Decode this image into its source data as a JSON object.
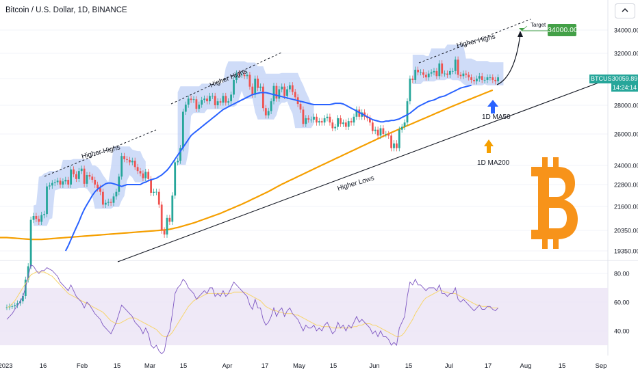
{
  "header": {
    "title": "Bitcoin / U.S. Dollar, 1D, BINANCE"
  },
  "colors": {
    "up": "#26a69a",
    "down": "#ef5350",
    "ma50": "#2962ff",
    "ma200": "#f59f00",
    "hull": "#bfd0f5",
    "rsi": "#7e57c2",
    "rsi_ma": "#f7d56e",
    "rsi_band": "#ede7f6",
    "btc_logo": "#f7931a",
    "target": "#43a047",
    "trendline": "#131722"
  },
  "price_tag": {
    "symbol": "BTCUSD",
    "value": "30059.89",
    "countdown": "14:24:14"
  },
  "target": {
    "label": "Target",
    "value": "34000.00"
  },
  "annotations": {
    "higher_highs_1": "Higher Highs",
    "higher_highs_2": "Higher Highs",
    "higher_highs_3": "Higher Highs",
    "higher_lows": "Higher Lows",
    "ma50_label": "1D MA50",
    "ma200_label": "1D MA200"
  },
  "icons": {
    "logo": "bitcoin-logo-icon",
    "ma50_arrow": "arrow-up-icon",
    "ma200_arrow": "arrow-up-icon",
    "target_arrow": "curved-arrow-icon",
    "header_icon": "chart-toggle-icon"
  },
  "chart_data": {
    "type": "candlestick",
    "price_axis": {
      "ticks": [
        34000,
        32000,
        30000,
        28000,
        26000,
        24000,
        22800,
        21600,
        20350,
        19350
      ],
      "labels": [
        "34000.00",
        "32000.00",
        "30000.00",
        "28000.00",
        "26000.00",
        "24000.00",
        "22800.00",
        "21600.00",
        "20350.00",
        "19350.00"
      ]
    },
    "rsi_axis": {
      "ticks": [
        80,
        60,
        40
      ],
      "labels": [
        "80.00",
        "60.00",
        "40.00"
      ],
      "band": [
        30,
        70
      ]
    },
    "time_axis": {
      "labels": [
        "2023",
        "16",
        "Feb",
        "15",
        "Mar",
        "15",
        "Apr",
        "17",
        "May",
        "15",
        "Jun",
        "15",
        "Jul",
        "17",
        "Aug",
        "15",
        "Sep"
      ]
    },
    "close": [
      16600,
      16650,
      16650,
      16700,
      16800,
      16900,
      17150,
      17950,
      18600,
      20900,
      21100,
      20950,
      20800,
      21150,
      21200,
      22700,
      22750,
      22900,
      22950,
      23050,
      22800,
      23000,
      23100,
      22800,
      23750,
      23450,
      23150,
      23650,
      23800,
      22850,
      23400,
      23300,
      23100,
      22800,
      22600,
      22400,
      21700,
      21800,
      21850,
      21800,
      22150,
      22400,
      23300,
      24600,
      24400,
      24350,
      24200,
      24300,
      23900,
      23650,
      23500,
      23200,
      23600,
      23150,
      22350,
      22400,
      22400,
      21700,
      20350,
      20150,
      21000,
      20800,
      22200,
      24200,
      24300,
      25100,
      27550,
      28050,
      28500,
      28400,
      28450,
      27750,
      28050,
      28400,
      28500,
      28300,
      28700,
      28700,
      28000,
      28300,
      28200,
      28700,
      28200,
      28300,
      28800,
      29900,
      30400,
      30300,
      30300,
      30200,
      30300,
      29400,
      28800,
      30000,
      29300,
      29400,
      27800,
      27300,
      27600,
      28300,
      29450,
      28500,
      29200,
      29400,
      28700,
      29200,
      29500,
      29000,
      28600,
      28100,
      27700,
      26700,
      27100,
      27000,
      27000,
      27200,
      26800,
      26900,
      26800,
      27100,
      27200,
      26800,
      26400,
      26500,
      27100,
      26700,
      26800,
      26500,
      26900,
      26800,
      27200,
      27700,
      27200,
      27500,
      27200,
      27100,
      26800,
      26200,
      26300,
      25900,
      26400,
      26000,
      26000,
      25900,
      25100,
      25400,
      25100,
      26300,
      26500,
      26800,
      28300,
      30000,
      29900,
      30700,
      30500,
      30500,
      30300,
      30100,
      30400,
      30500,
      30600,
      30200,
      31200,
      30400,
      30400,
      30300,
      30600,
      30600,
      31500,
      30300,
      30200,
      30400,
      30300,
      30100,
      29900,
      29800,
      30000,
      30200,
      29900,
      29900,
      30100,
      30100,
      29900,
      29800,
      30100
    ],
    "ma50": [
      null,
      null,
      null,
      null,
      null,
      null,
      null,
      null,
      null,
      null,
      null,
      null,
      null,
      null,
      null,
      null,
      null,
      null,
      null,
      null,
      null,
      null,
      19350,
      19600,
      19900,
      20200,
      20500,
      20800,
      21150,
      21450,
      21700,
      21950,
      22200,
      22400,
      22550,
      22650,
      22750,
      22850,
      22900,
      22900,
      22850,
      22800,
      22750,
      22700,
      22750,
      22800,
      22800,
      22800,
      22800,
      22800,
      22800,
      22900,
      22950,
      23050,
      23100,
      23150,
      23200,
      23300,
      23400,
      23550,
      23700,
      23900,
      24150,
      24400,
      24650,
      24900,
      25150,
      25400,
      25650,
      25900,
      26050,
      26200,
      26350,
      26500,
      26650,
      26800,
      26950,
      27100,
      27250,
      27400,
      27550,
      27700,
      27800,
      27900,
      28000,
      28100,
      28200,
      28300,
      28400,
      28500,
      28600,
      28700,
      28800,
      28850,
      28900,
      28950,
      28950,
      28950,
      28900,
      28850,
      28800,
      28750,
      28700,
      28650,
      28600,
      28550,
      28500,
      28450,
      28400,
      28350,
      28300,
      28250,
      28200,
      28150,
      28100,
      28050,
      28050,
      28050,
      28050,
      28050,
      28050,
      28050,
      28100,
      28150,
      28150,
      28150,
      28100,
      28000,
      27900,
      27800,
      27700,
      27600,
      27500,
      27400,
      27300,
      27200,
      27100,
      27000,
      26950,
      26900,
      26850,
      26850,
      26900,
      26900,
      26950,
      26950,
      27000,
      27050,
      27150,
      27250,
      27350,
      27450,
      27600,
      27750,
      27900,
      28000,
      28100,
      28200,
      28300,
      28350,
      28400,
      28500,
      28600,
      28650,
      28700,
      28800,
      28900,
      29000,
      29100,
      29200,
      29300,
      29350,
      29400,
      29450,
      29500
    ],
    "ma200": [
      20000,
      19990,
      19980,
      19970,
      19960,
      19950,
      19940,
      19930,
      19920,
      19910,
      19910,
      19910,
      19910,
      19910,
      19920,
      19930,
      19940,
      19950,
      19960,
      19970,
      19980,
      19990,
      20000,
      20010,
      20020,
      20030,
      20040,
      20050,
      20060,
      20070,
      20080,
      20090,
      20100,
      20110,
      20120,
      20130,
      20140,
      20150,
      20160,
      20170,
      20180,
      20190,
      20200,
      20210,
      20220,
      20230,
      20240,
      20250,
      20260,
      20270,
      20280,
      20290,
      20300,
      20310,
      20320,
      20330,
      20340,
      20350,
      20360,
      20370,
      20390,
      20410,
      20440,
      20470,
      20500,
      20540,
      20580,
      20620,
      20660,
      20700,
      20740,
      20790,
      20840,
      20890,
      20940,
      20990,
      21040,
      21090,
      21140,
      21190,
      21240,
      21300,
      21360,
      21420,
      21480,
      21540,
      21600,
      21660,
      21720,
      21790,
      21860,
      21930,
      22000,
      22070,
      22140,
      22210,
      22280,
      22350,
      22420,
      22500,
      22580,
      22660,
      22740,
      22820,
      22900,
      22980,
      23060,
      23140,
      23220,
      23300,
      23380,
      23460,
      23540,
      23620,
      23700,
      23780,
      23860,
      23940,
      24020,
      24100,
      24180,
      24260,
      24340,
      24420,
      24500,
      24580,
      24660,
      24740,
      24820,
      24900,
      24980,
      25060,
      25140,
      25220,
      25300,
      25380,
      25460,
      25540,
      25620,
      25700,
      25780,
      25860,
      25940,
      26020,
      26100,
      26180,
      26260,
      26340,
      26420,
      26500,
      26580,
      26660,
      26740,
      26820,
      26900,
      26980,
      27060,
      27140,
      27220,
      27300,
      27380,
      27460,
      27540,
      27620,
      27700,
      27780,
      27860,
      27940,
      28020,
      28100,
      28180,
      28260,
      28340,
      28420,
      28500,
      28580,
      28660,
      28740,
      28820,
      28900,
      28980,
      29060,
      29140
    ],
    "rsi": [
      48,
      50,
      52,
      55,
      58,
      60,
      64,
      70,
      78,
      86,
      85,
      82,
      80,
      82,
      82,
      84,
      83,
      82,
      80,
      78,
      74,
      72,
      70,
      68,
      72,
      68,
      64,
      62,
      60,
      56,
      60,
      58,
      55,
      52,
      50,
      48,
      44,
      42,
      40,
      38,
      42,
      46,
      52,
      58,
      56,
      54,
      52,
      50,
      46,
      44,
      42,
      38,
      42,
      38,
      30,
      28,
      30,
      26,
      24,
      26,
      36,
      40,
      52,
      66,
      70,
      72,
      76,
      74,
      70,
      68,
      66,
      62,
      64,
      66,
      68,
      66,
      70,
      70,
      64,
      66,
      64,
      68,
      64,
      66,
      70,
      74,
      72,
      70,
      68,
      66,
      64,
      58,
      55,
      62,
      56,
      56,
      48,
      44,
      46,
      50,
      56,
      50,
      54,
      56,
      50,
      54,
      56,
      52,
      50,
      48,
      44,
      40,
      44,
      42,
      42,
      44,
      40,
      42,
      40,
      44,
      46,
      42,
      38,
      40,
      46,
      42,
      44,
      40,
      44,
      42,
      46,
      50,
      46,
      48,
      46,
      44,
      42,
      38,
      40,
      36,
      40,
      36,
      36,
      34,
      30,
      32,
      30,
      42,
      46,
      50,
      64,
      74,
      72,
      76,
      72,
      72,
      70,
      68,
      70,
      70,
      70,
      68,
      72,
      66,
      66,
      64,
      66,
      66,
      70,
      62,
      60,
      62,
      60,
      58,
      56,
      54,
      56,
      58,
      55,
      55,
      57,
      57,
      55,
      54,
      56
    ],
    "rsi_ma": [
      56,
      57,
      59,
      61,
      64,
      67,
      70,
      73,
      76,
      79,
      80,
      81,
      81,
      81,
      81,
      80,
      79,
      78,
      76,
      74,
      72,
      70,
      68,
      66,
      65,
      64,
      63,
      62,
      61,
      60,
      59,
      58,
      57,
      56,
      55,
      54,
      53,
      51,
      49,
      47,
      46,
      45,
      45,
      46,
      47,
      48,
      49,
      49,
      49,
      48,
      47,
      46,
      45,
      44,
      43,
      42,
      41,
      39,
      37,
      36,
      36,
      37,
      39,
      42,
      45,
      48,
      51,
      54,
      57,
      59,
      61,
      62,
      63,
      64,
      65,
      66,
      66,
      66,
      66,
      66,
      66,
      66,
      66,
      66,
      66,
      67,
      67,
      67,
      67,
      67,
      66,
      65,
      64,
      63,
      62,
      61,
      59,
      57,
      56,
      55,
      54,
      54,
      53,
      53,
      52,
      52,
      52,
      52,
      51,
      51,
      50,
      49,
      48,
      47,
      46,
      45,
      44,
      44,
      43,
      43,
      43,
      43,
      42,
      42,
      42,
      42,
      42,
      42,
      42,
      42,
      43,
      43,
      44,
      44,
      45,
      45,
      45,
      44,
      44,
      43,
      42,
      41,
      40,
      39,
      38,
      37,
      36,
      36,
      37,
      39,
      42,
      45,
      48,
      52,
      55,
      58,
      61,
      63,
      64,
      65,
      66,
      67,
      68,
      68,
      67,
      67,
      66,
      66,
      66,
      65,
      64,
      63,
      62,
      61,
      60,
      59,
      58,
      58,
      57,
      57,
      57,
      56,
      56,
      56,
      56
    ],
    "hull_annotations": 3
  }
}
